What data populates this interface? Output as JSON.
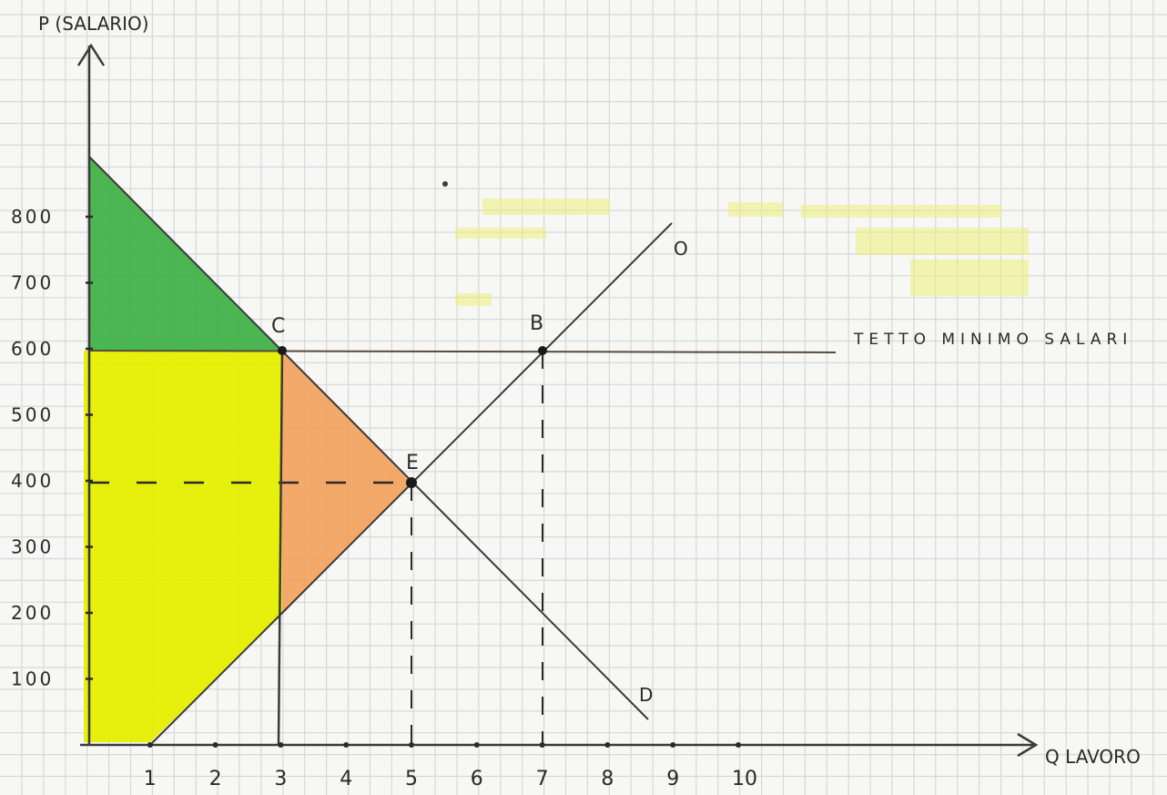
{
  "axes": {
    "y_label": "P (SALARIO)",
    "x_label": "Q LAVORO",
    "y_ticks": [
      "800",
      "700",
      "600",
      "500",
      "400",
      "300",
      "200",
      "100"
    ],
    "x_ticks": [
      "1",
      "2",
      "3",
      "4",
      "5",
      "6",
      "7",
      "8",
      "9",
      "10"
    ]
  },
  "curves": {
    "supply_label": "O",
    "demand_label": "D",
    "price_floor_label": "TETTO MINIMO SALARI"
  },
  "points": {
    "C": {
      "label": "C",
      "q": 3,
      "p": 600
    },
    "B": {
      "label": "B",
      "q": 7,
      "p": 600
    },
    "E": {
      "label": "E",
      "q": 5,
      "p": 400
    }
  },
  "regions": {
    "green": "#3cb043",
    "yellow": "#e6ee00",
    "orange": "#f2a05a",
    "highlight": "#eef07a"
  }
}
